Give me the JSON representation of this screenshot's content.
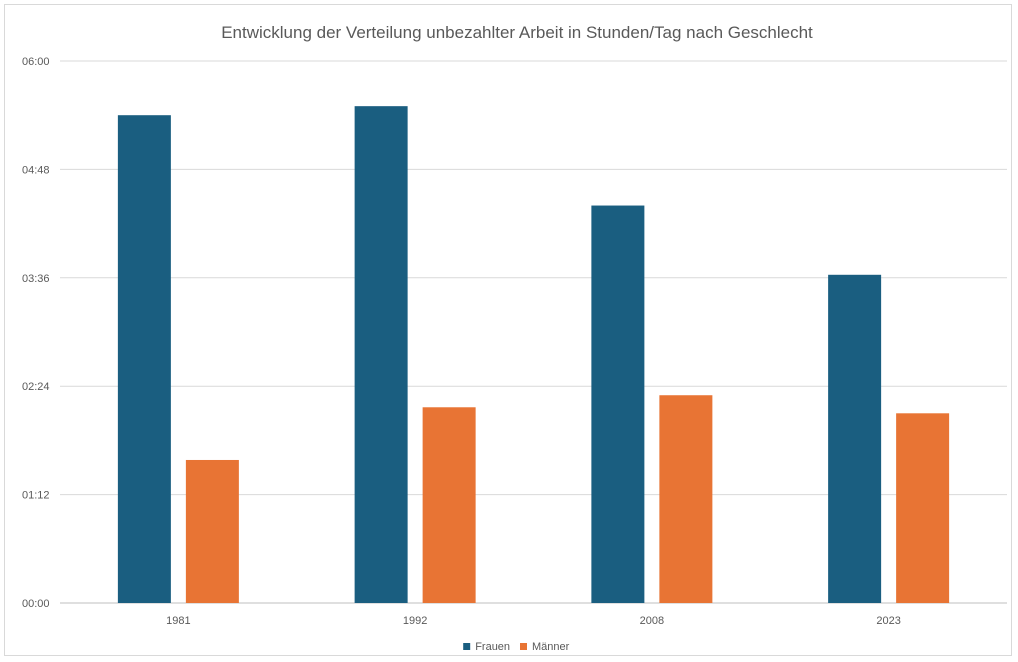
{
  "chart_data": {
    "type": "bar",
    "title": "Entwicklung der Verteilung unbezahlter Arbeit in Stunden/Tag nach Geschlecht",
    "xlabel": "",
    "ylabel": "",
    "categories": [
      "1981",
      "1992",
      "2008",
      "2023"
    ],
    "series": [
      {
        "name": "Frauen",
        "color": "#1a5e80",
        "values_minutes": [
          324,
          330,
          264,
          218
        ],
        "values_hhmm": [
          "05:24",
          "05:30",
          "04:24",
          "03:38"
        ]
      },
      {
        "name": "Männer",
        "color": "#e87434",
        "values_minutes": [
          95,
          130,
          138,
          126
        ],
        "values_hhmm": [
          "01:35",
          "02:10",
          "02:18",
          "02:06"
        ]
      }
    ],
    "yunit": "hh:mm",
    "ylim_minutes": [
      0,
      360
    ],
    "yticks": [
      "00:00",
      "01:12",
      "02:24",
      "03:36",
      "04:48",
      "06:00"
    ],
    "grid": true,
    "legend_position": "bottom"
  }
}
